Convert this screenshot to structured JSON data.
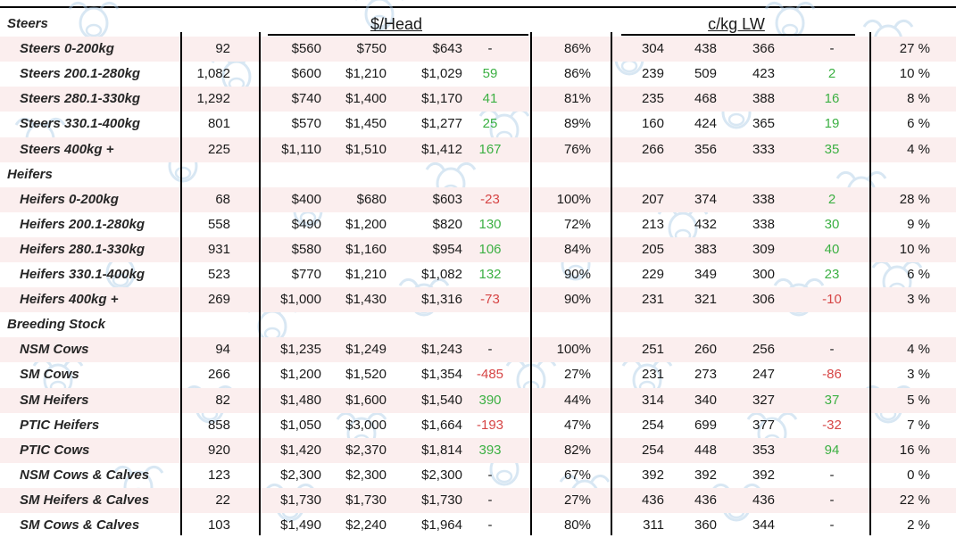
{
  "headers": {
    "dollars_per_head": "$/Head",
    "cents_per_kg": "c/kg LW"
  },
  "colors": {
    "positive": "#3cb043",
    "negative": "#d64545",
    "band": "#fbeeee",
    "watermark": "#a9cbe6"
  },
  "rows": [
    {
      "type": "section",
      "label": "Steers"
    },
    {
      "label": "Steers 0-200kg",
      "head": "92",
      "h_min": "$560",
      "h_max": "$750",
      "h_avg": "$643",
      "h_chg": "-",
      "pct": "86%",
      "c_min": "304",
      "c_max": "438",
      "c_avg": "366",
      "c_chg": "-",
      "share": "27 %"
    },
    {
      "label": "Steers 200.1-280kg",
      "head": "1,082",
      "h_min": "$600",
      "h_max": "$1,210",
      "h_avg": "$1,029",
      "h_chg": "59",
      "pct": "86%",
      "c_min": "239",
      "c_max": "509",
      "c_avg": "423",
      "c_chg": "2",
      "share": "10 %"
    },
    {
      "label": "Steers 280.1-330kg",
      "head": "1,292",
      "h_min": "$740",
      "h_max": "$1,400",
      "h_avg": "$1,170",
      "h_chg": "41",
      "pct": "81%",
      "c_min": "235",
      "c_max": "468",
      "c_avg": "388",
      "c_chg": "16",
      "share": "8 %"
    },
    {
      "label": "Steers 330.1-400kg",
      "head": "801",
      "h_min": "$570",
      "h_max": "$1,450",
      "h_avg": "$1,277",
      "h_chg": "25",
      "pct": "89%",
      "c_min": "160",
      "c_max": "424",
      "c_avg": "365",
      "c_chg": "19",
      "share": "6 %"
    },
    {
      "label": "Steers 400kg +",
      "head": "225",
      "h_min": "$1,110",
      "h_max": "$1,510",
      "h_avg": "$1,412",
      "h_chg": "167",
      "pct": "76%",
      "c_min": "266",
      "c_max": "356",
      "c_avg": "333",
      "c_chg": "35",
      "share": "4 %"
    },
    {
      "type": "section",
      "label": "Heifers"
    },
    {
      "label": "Heifers 0-200kg",
      "head": "68",
      "h_min": "$400",
      "h_max": "$680",
      "h_avg": "$603",
      "h_chg": "-23",
      "pct": "100%",
      "c_min": "207",
      "c_max": "374",
      "c_avg": "338",
      "c_chg": "2",
      "share": "28 %"
    },
    {
      "label": "Heifers 200.1-280kg",
      "head": "558",
      "h_min": "$490",
      "h_max": "$1,200",
      "h_avg": "$820",
      "h_chg": "130",
      "pct": "72%",
      "c_min": "213",
      "c_max": "432",
      "c_avg": "338",
      "c_chg": "30",
      "share": "9 %"
    },
    {
      "label": "Heifers 280.1-330kg",
      "head": "931",
      "h_min": "$580",
      "h_max": "$1,160",
      "h_avg": "$954",
      "h_chg": "106",
      "pct": "84%",
      "c_min": "205",
      "c_max": "383",
      "c_avg": "309",
      "c_chg": "40",
      "share": "10 %"
    },
    {
      "label": "Heifers 330.1-400kg",
      "head": "523",
      "h_min": "$770",
      "h_max": "$1,210",
      "h_avg": "$1,082",
      "h_chg": "132",
      "pct": "90%",
      "c_min": "229",
      "c_max": "349",
      "c_avg": "300",
      "c_chg": "23",
      "share": "6 %"
    },
    {
      "label": "Heifers 400kg +",
      "head": "269",
      "h_min": "$1,000",
      "h_max": "$1,430",
      "h_avg": "$1,316",
      "h_chg": "-73",
      "pct": "90%",
      "c_min": "231",
      "c_max": "321",
      "c_avg": "306",
      "c_chg": "-10",
      "share": "3 %"
    },
    {
      "type": "section",
      "label": "Breeding Stock"
    },
    {
      "label": "NSM Cows",
      "head": "94",
      "h_min": "$1,235",
      "h_max": "$1,249",
      "h_avg": "$1,243",
      "h_chg": "-",
      "pct": "100%",
      "c_min": "251",
      "c_max": "260",
      "c_avg": "256",
      "c_chg": "-",
      "share": "4 %"
    },
    {
      "label": "SM Cows",
      "head": "266",
      "h_min": "$1,200",
      "h_max": "$1,520",
      "h_avg": "$1,354",
      "h_chg": "-485",
      "pct": "27%",
      "c_min": "231",
      "c_max": "273",
      "c_avg": "247",
      "c_chg": "-86",
      "share": "3 %"
    },
    {
      "label": "SM Heifers",
      "head": "82",
      "h_min": "$1,480",
      "h_max": "$1,600",
      "h_avg": "$1,540",
      "h_chg": "390",
      "pct": "44%",
      "c_min": "314",
      "c_max": "340",
      "c_avg": "327",
      "c_chg": "37",
      "share": "5 %"
    },
    {
      "label": "PTIC Heifers",
      "head": "858",
      "h_min": "$1,050",
      "h_max": "$3,000",
      "h_avg": "$1,664",
      "h_chg": "-193",
      "pct": "47%",
      "c_min": "254",
      "c_max": "699",
      "c_avg": "377",
      "c_chg": "-32",
      "share": "7 %"
    },
    {
      "label": "PTIC Cows",
      "head": "920",
      "h_min": "$1,420",
      "h_max": "$2,370",
      "h_avg": "$1,814",
      "h_chg": "393",
      "pct": "82%",
      "c_min": "254",
      "c_max": "448",
      "c_avg": "353",
      "c_chg": "94",
      "share": "16 %"
    },
    {
      "label": "NSM Cows & Calves",
      "head": "123",
      "h_min": "$2,300",
      "h_max": "$2,300",
      "h_avg": "$2,300",
      "h_chg": "-",
      "pct": "67%",
      "c_min": "392",
      "c_max": "392",
      "c_avg": "392",
      "c_chg": "-",
      "share": "0 %"
    },
    {
      "label": "SM Heifers & Calves",
      "head": "22",
      "h_min": "$1,730",
      "h_max": "$1,730",
      "h_avg": "$1,730",
      "h_chg": "-",
      "pct": "27%",
      "c_min": "436",
      "c_max": "436",
      "c_avg": "436",
      "c_chg": "-",
      "share": "22 %"
    },
    {
      "label": "SM Cows & Calves",
      "head": "103",
      "h_min": "$1,490",
      "h_max": "$2,240",
      "h_avg": "$1,964",
      "h_chg": "-",
      "pct": "80%",
      "c_min": "311",
      "c_max": "360",
      "c_avg": "344",
      "c_chg": "-",
      "share": "2 %"
    }
  ]
}
